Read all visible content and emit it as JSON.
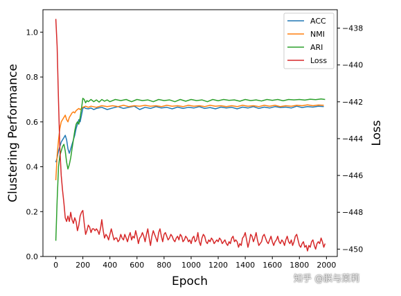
{
  "watermark": "知乎 @朕与莱莉",
  "chart_data": {
    "type": "line",
    "xlabel": "Epoch",
    "ylabel_left": "Clustering Performance",
    "ylabel_right": "Loss",
    "xlim": [
      -95,
      2080
    ],
    "ylim_left": [
      0.0,
      1.1
    ],
    "ylim_right": [
      -450.4,
      -437.0
    ],
    "x_ticks": [
      0,
      200,
      400,
      600,
      800,
      1000,
      1200,
      1400,
      1600,
      1800,
      2000
    ],
    "y_ticks_left": [
      0.0,
      0.2,
      0.4,
      0.6,
      0.8,
      1.0
    ],
    "y_ticks_right": [
      -438,
      -440,
      -442,
      -444,
      -446,
      -448,
      -450
    ],
    "y_tick_labels_left": [
      "0.0",
      "0.2",
      "0.4",
      "0.6",
      "0.8",
      "1.0"
    ],
    "y_tick_labels_right": [
      "−438",
      "−440",
      "−442",
      "−444",
      "−446",
      "−448",
      "−450"
    ],
    "legend_position": "upper right",
    "grid": false,
    "series": [
      {
        "name": "ACC",
        "axis": "left",
        "color": "#1f77b4",
        "x": [
          0,
          10,
          20,
          30,
          40,
          50,
          60,
          70,
          80,
          90,
          100,
          110,
          120,
          130,
          140,
          150,
          160,
          170,
          180,
          190,
          200,
          210,
          220,
          240,
          260,
          280,
          300,
          340,
          380,
          420,
          460,
          500,
          540,
          580,
          620,
          660,
          700,
          740,
          780,
          820,
          860,
          900,
          940,
          980,
          1020,
          1060,
          1100,
          1140,
          1180,
          1220,
          1260,
          1300,
          1340,
          1380,
          1420,
          1460,
          1500,
          1540,
          1580,
          1620,
          1660,
          1700,
          1740,
          1780,
          1820,
          1860,
          1900,
          1940,
          1980
        ],
        "y": [
          0.42,
          0.44,
          0.47,
          0.49,
          0.51,
          0.52,
          0.53,
          0.54,
          0.52,
          0.48,
          0.46,
          0.48,
          0.5,
          0.52,
          0.54,
          0.57,
          0.59,
          0.61,
          0.6,
          0.63,
          0.66,
          0.665,
          0.66,
          0.658,
          0.662,
          0.655,
          0.66,
          0.665,
          0.655,
          0.662,
          0.668,
          0.66,
          0.665,
          0.67,
          0.655,
          0.665,
          0.66,
          0.668,
          0.662,
          0.665,
          0.658,
          0.666,
          0.66,
          0.665,
          0.662,
          0.668,
          0.66,
          0.664,
          0.658,
          0.666,
          0.662,
          0.665,
          0.658,
          0.666,
          0.662,
          0.668,
          0.66,
          0.666,
          0.662,
          0.668,
          0.664,
          0.666,
          0.662,
          0.67,
          0.664,
          0.668,
          0.666,
          0.67,
          0.668
        ]
      },
      {
        "name": "NMI",
        "axis": "left",
        "color": "#ff7f0e",
        "x": [
          0,
          10,
          20,
          30,
          40,
          50,
          60,
          70,
          80,
          90,
          100,
          110,
          120,
          130,
          140,
          150,
          160,
          170,
          180,
          190,
          200,
          220,
          240,
          260,
          300,
          340,
          380,
          420,
          460,
          500,
          540,
          580,
          620,
          660,
          700,
          740,
          780,
          820,
          860,
          900,
          940,
          980,
          1020,
          1060,
          1100,
          1140,
          1180,
          1220,
          1260,
          1300,
          1340,
          1380,
          1420,
          1460,
          1500,
          1540,
          1580,
          1620,
          1660,
          1700,
          1740,
          1780,
          1820,
          1860,
          1900,
          1940,
          1980
        ],
        "y": [
          0.34,
          0.45,
          0.52,
          0.57,
          0.6,
          0.61,
          0.62,
          0.63,
          0.61,
          0.6,
          0.62,
          0.63,
          0.64,
          0.645,
          0.64,
          0.65,
          0.655,
          0.66,
          0.655,
          0.66,
          0.665,
          0.67,
          0.665,
          0.67,
          0.665,
          0.672,
          0.668,
          0.672,
          0.668,
          0.674,
          0.668,
          0.672,
          0.67,
          0.674,
          0.67,
          0.672,
          0.668,
          0.674,
          0.67,
          0.672,
          0.668,
          0.674,
          0.67,
          0.672,
          0.668,
          0.674,
          0.67,
          0.672,
          0.668,
          0.672,
          0.668,
          0.674,
          0.67,
          0.672,
          0.668,
          0.674,
          0.67,
          0.674,
          0.668,
          0.672,
          0.67,
          0.674,
          0.672,
          0.676,
          0.672,
          0.675,
          0.674
        ]
      },
      {
        "name": "ARI",
        "axis": "left",
        "color": "#2ca02c",
        "x": [
          0,
          10,
          20,
          30,
          40,
          50,
          60,
          70,
          80,
          90,
          100,
          110,
          120,
          130,
          140,
          150,
          160,
          170,
          180,
          190,
          200,
          210,
          220,
          230,
          240,
          260,
          280,
          300,
          320,
          340,
          360,
          380,
          400,
          440,
          480,
          520,
          560,
          600,
          640,
          680,
          720,
          760,
          800,
          840,
          880,
          920,
          960,
          1000,
          1040,
          1080,
          1120,
          1160,
          1200,
          1240,
          1280,
          1320,
          1360,
          1400,
          1440,
          1480,
          1520,
          1560,
          1600,
          1640,
          1680,
          1720,
          1760,
          1800,
          1840,
          1880,
          1920,
          1960,
          1990
        ],
        "y": [
          0.07,
          0.25,
          0.4,
          0.45,
          0.47,
          0.49,
          0.5,
          0.47,
          0.42,
          0.39,
          0.41,
          0.44,
          0.48,
          0.52,
          0.56,
          0.59,
          0.6,
          0.59,
          0.62,
          0.66,
          0.705,
          0.7,
          0.685,
          0.695,
          0.69,
          0.7,
          0.69,
          0.698,
          0.688,
          0.7,
          0.692,
          0.698,
          0.69,
          0.7,
          0.695,
          0.7,
          0.69,
          0.7,
          0.695,
          0.698,
          0.69,
          0.7,
          0.695,
          0.698,
          0.69,
          0.7,
          0.692,
          0.7,
          0.695,
          0.698,
          0.69,
          0.7,
          0.694,
          0.7,
          0.696,
          0.698,
          0.692,
          0.7,
          0.695,
          0.698,
          0.693,
          0.7,
          0.696,
          0.7,
          0.694,
          0.7,
          0.698,
          0.7,
          0.697,
          0.701,
          0.699,
          0.702,
          0.7
        ]
      },
      {
        "name": "Loss",
        "axis": "right",
        "color": "#d62728",
        "x": [
          0,
          10,
          20,
          30,
          40,
          50,
          60,
          70,
          80,
          90,
          100,
          110,
          120,
          130,
          140,
          150,
          160,
          170,
          180,
          190,
          200,
          210,
          220,
          230,
          240,
          250,
          260,
          270,
          280,
          290,
          300,
          310,
          320,
          330,
          340,
          350,
          360,
          370,
          380,
          390,
          400,
          410,
          420,
          430,
          440,
          450,
          460,
          470,
          480,
          490,
          500,
          510,
          520,
          530,
          540,
          550,
          560,
          570,
          580,
          590,
          600,
          610,
          620,
          630,
          640,
          650,
          660,
          670,
          680,
          690,
          700,
          710,
          720,
          730,
          740,
          750,
          760,
          770,
          780,
          790,
          800,
          810,
          820,
          830,
          840,
          850,
          860,
          870,
          880,
          890,
          900,
          910,
          920,
          930,
          940,
          950,
          960,
          970,
          980,
          990,
          1000,
          1010,
          1020,
          1030,
          1040,
          1050,
          1060,
          1070,
          1080,
          1090,
          1100,
          1110,
          1120,
          1130,
          1140,
          1150,
          1160,
          1170,
          1180,
          1190,
          1200,
          1210,
          1220,
          1230,
          1240,
          1250,
          1260,
          1270,
          1280,
          1290,
          1300,
          1310,
          1320,
          1330,
          1340,
          1350,
          1360,
          1370,
          1380,
          1390,
          1400,
          1410,
          1420,
          1430,
          1440,
          1450,
          1460,
          1470,
          1480,
          1490,
          1500,
          1510,
          1520,
          1530,
          1540,
          1550,
          1560,
          1570,
          1580,
          1590,
          1600,
          1610,
          1620,
          1630,
          1640,
          1650,
          1660,
          1670,
          1680,
          1690,
          1700,
          1710,
          1720,
          1730,
          1740,
          1750,
          1760,
          1770,
          1780,
          1790,
          1800,
          1810,
          1820,
          1830,
          1840,
          1850,
          1860,
          1870,
          1880,
          1890,
          1900,
          1910,
          1920,
          1930,
          1940,
          1950,
          1960,
          1970,
          1980,
          1990
        ],
        "y": [
          -437.5,
          -439.0,
          -442.0,
          -444.5,
          -446.0,
          -446.8,
          -447.5,
          -448.3,
          -448.5,
          -448.2,
          -448.5,
          -448.0,
          -448.4,
          -448.6,
          -448.3,
          -448.5,
          -449.0,
          -448.7,
          -448.2,
          -448.0,
          -447.9,
          -448.6,
          -449.2,
          -449.0,
          -448.7,
          -448.8,
          -449.1,
          -448.9,
          -448.9,
          -449.0,
          -448.9,
          -449.0,
          -449.2,
          -448.9,
          -448.4,
          -449.0,
          -449.4,
          -449.2,
          -449.3,
          -449.5,
          -449.2,
          -448.9,
          -449.2,
          -449.5,
          -449.4,
          -449.4,
          -449.6,
          -449.5,
          -449.2,
          -449.4,
          -449.5,
          -449.2,
          -449.4,
          -449.6,
          -449.3,
          -449.1,
          -449.5,
          -449.3,
          -449.4,
          -449.0,
          -449.3,
          -449.7,
          -449.4,
          -449.3,
          -449.1,
          -449.3,
          -449.6,
          -449.2,
          -448.9,
          -449.4,
          -449.8,
          -449.3,
          -449.0,
          -449.2,
          -449.4,
          -449.6,
          -449.1,
          -448.9,
          -449.3,
          -449.6,
          -449.2,
          -449.1,
          -449.3,
          -449.5,
          -449.4,
          -449.2,
          -449.3,
          -449.5,
          -449.6,
          -449.4,
          -449.3,
          -449.5,
          -449.2,
          -449.3,
          -449.6,
          -449.5,
          -449.3,
          -449.4,
          -449.6,
          -449.5,
          -449.7,
          -449.4,
          -449.3,
          -449.6,
          -449.5,
          -449.1,
          -449.6,
          -449.8,
          -449.4,
          -449.2,
          -449.3,
          -449.6,
          -449.7,
          -449.5,
          -449.6,
          -449.4,
          -449.5,
          -449.7,
          -449.6,
          -449.5,
          -449.6,
          -449.4,
          -449.5,
          -449.7,
          -449.6,
          -449.5,
          -449.7,
          -449.8,
          -449.6,
          -449.7,
          -449.4,
          -449.3,
          -449.6,
          -449.5,
          -449.6,
          -449.9,
          -449.7,
          -449.8,
          -449.4,
          -449.3,
          -449.1,
          -449.5,
          -449.9,
          -449.6,
          -449.2,
          -449.3,
          -449.6,
          -449.4,
          -449.1,
          -449.5,
          -449.8,
          -449.7,
          -449.6,
          -449.3,
          -449.2,
          -449.4,
          -449.6,
          -449.7,
          -449.5,
          -449.3,
          -449.6,
          -449.8,
          -449.6,
          -449.5,
          -449.3,
          -449.6,
          -449.7,
          -449.5,
          -449.6,
          -449.8,
          -449.5,
          -449.3,
          -449.6,
          -449.7,
          -449.5,
          -449.8,
          -449.6,
          -449.3,
          -449.2,
          -449.5,
          -449.8,
          -449.9,
          -449.7,
          -449.6,
          -449.9,
          -449.8,
          -450.1,
          -449.8,
          -449.9,
          -449.6,
          -449.5,
          -449.8,
          -450.0,
          -449.7,
          -449.6,
          -449.7,
          -449.4,
          -449.6,
          -449.9,
          -449.7
        ]
      }
    ]
  }
}
